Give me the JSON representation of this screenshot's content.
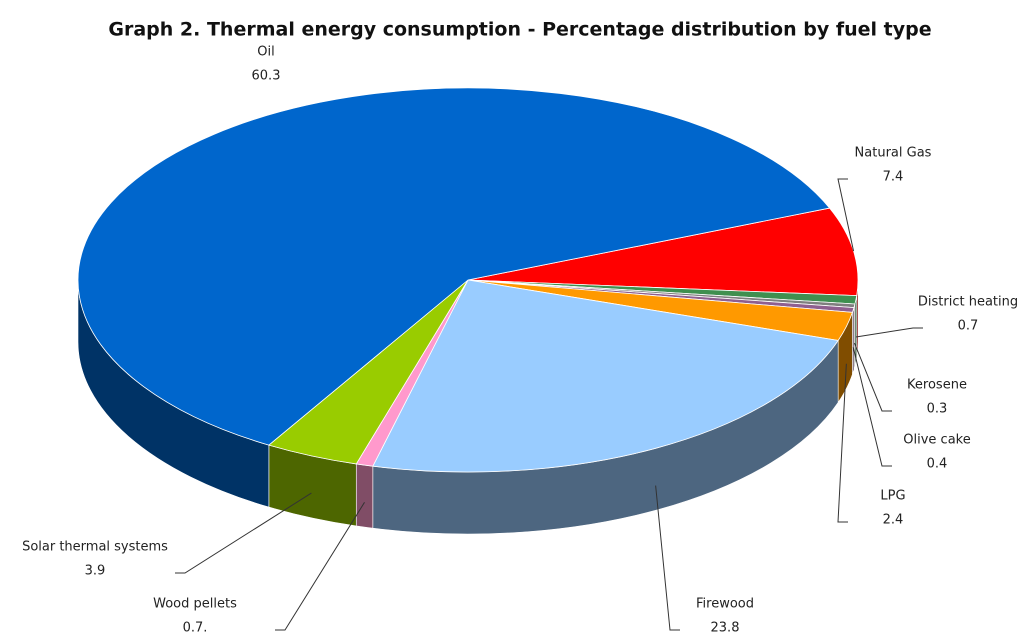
{
  "chart_data": {
    "type": "pie3d",
    "title": "Graph 2. Thermal energy consumption - Percentage distribution by fuel type",
    "categories": [
      "Oil",
      "Natural Gas",
      "District heating",
      "Kerosene",
      "Olive cake",
      "LPG",
      "Firewood",
      "Wood pellets",
      "Solar thermal systems"
    ],
    "values": [
      60.3,
      7.4,
      0.7,
      0.3,
      0.4,
      2.4,
      23.8,
      0.7,
      3.9
    ],
    "value_labels": [
      "60.3",
      "7.4",
      "0.7",
      "0.3",
      "0.4",
      "2.4",
      "23.8",
      "0.7.",
      "3.9"
    ],
    "colors": [
      "#0066cc",
      "#ff0000",
      "#3f8f4f",
      "#7f7f7f",
      "#8f5f8f",
      "#ff9900",
      "#99ccff",
      "#ff99cc",
      "#99cc00"
    ]
  }
}
